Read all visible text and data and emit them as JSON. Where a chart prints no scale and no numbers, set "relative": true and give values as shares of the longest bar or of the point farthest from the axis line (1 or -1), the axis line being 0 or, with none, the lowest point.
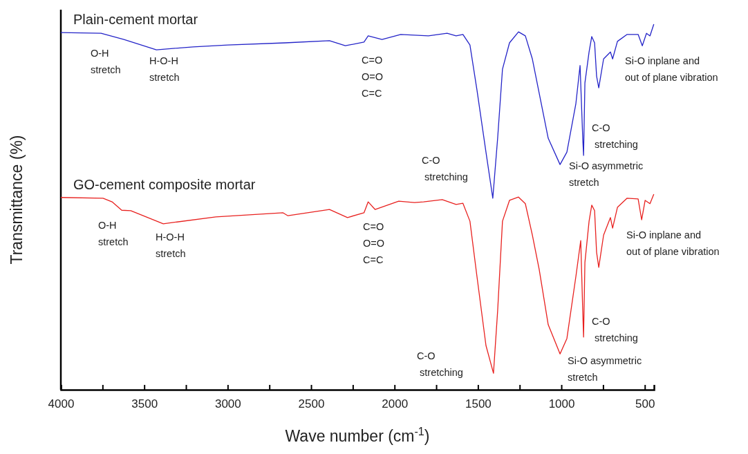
{
  "chart_data": {
    "type": "line",
    "relative": true,
    "xlabel": "Wave number (cm$^{-1}$)",
    "ylabel": "Transmittance (%)",
    "xlim": [
      4000,
      445
    ],
    "xticks": [
      4000,
      {
        "value": 3750,
        "label": null
      },
      3500,
      {
        "value": 3250,
        "label": null
      },
      3000,
      {
        "value": 2750,
        "label": null
      },
      2500,
      {
        "value": 2250,
        "label": null
      },
      2000,
      {
        "value": 1750,
        "label": null
      },
      1500,
      {
        "value": 1250,
        "label": null
      },
      1000,
      {
        "value": 750,
        "label": null
      },
      500
    ],
    "grid": false,
    "marker": "none",
    "line_style": "solid",
    "series": [
      {
        "name": "Plain-cement mortar",
        "color": "#2323c8",
        "x": [
          4000,
          3759,
          3622,
          3427,
          3207,
          3000,
          2656,
          2390,
          2295,
          2183,
          2158,
          2075,
          1963,
          1797,
          1685,
          1631,
          1590,
          1548,
          1506,
          1452,
          1411,
          1382,
          1353,
          1311,
          1257,
          1216,
          1174,
          1133,
          1079,
          1008,
          967,
          913,
          888,
          872,
          867,
          859,
          834,
          818,
          801,
          789,
          776,
          747,
          706,
          693,
          664,
          606,
          540,
          515,
          490,
          469,
          446
        ],
        "values": [
          0.977,
          0.975,
          0.958,
          0.93,
          0.938,
          0.943,
          0.949,
          0.955,
          0.941,
          0.951,
          0.968,
          0.958,
          0.972,
          0.968,
          0.975,
          0.968,
          0.972,
          0.943,
          0.82,
          0.65,
          0.524,
          0.688,
          0.877,
          0.949,
          0.979,
          0.968,
          0.905,
          0.811,
          0.688,
          0.616,
          0.65,
          0.783,
          0.887,
          0.688,
          0.641,
          0.839,
          0.924,
          0.966,
          0.949,
          0.858,
          0.826,
          0.905,
          0.924,
          0.905,
          0.953,
          0.972,
          0.972,
          0.941,
          0.975,
          0.968,
          1
        ]
      },
      {
        "name": "GO-cement composite mortar",
        "color": "#e8201e",
        "x": [
          4000,
          3747,
          3693,
          3635,
          3581,
          3386,
          3071,
          2668,
          2639,
          2390,
          2282,
          2183,
          2158,
          2116,
          1975,
          1880,
          1826,
          1714,
          1631,
          1590,
          1548,
          1506,
          1452,
          1407,
          1382,
          1353,
          1311,
          1257,
          1216,
          1174,
          1133,
          1079,
          1008,
          967,
          913,
          884,
          872,
          867,
          859,
          834,
          818,
          801,
          789,
          776,
          747,
          706,
          693,
          664,
          606,
          540,
          519,
          498,
          469,
          446
        ],
        "values": [
          0.526,
          0.524,
          0.514,
          0.491,
          0.49,
          0.454,
          0.473,
          0.484,
          0.476,
          0.493,
          0.471,
          0.484,
          0.514,
          0.493,
          0.516,
          0.512,
          0.514,
          0.52,
          0.507,
          0.51,
          0.461,
          0.31,
          0.121,
          0.045,
          0.216,
          0.461,
          0.518,
          0.527,
          0.509,
          0.423,
          0.329,
          0.178,
          0.098,
          0.14,
          0.31,
          0.408,
          0.216,
          0.144,
          0.348,
          0.461,
          0.505,
          0.49,
          0.376,
          0.335,
          0.423,
          0.471,
          0.442,
          0.499,
          0.524,
          0.522,
          0.465,
          0.518,
          0.509,
          0.535
        ]
      }
    ],
    "annotations": [
      "O-H\nstretch",
      "H-O-H\nstretch",
      "C=O\nO=O\nC=C",
      "C-O\n stretching",
      "Si-O asymmetric\nstretch",
      "C-O\n stretching",
      "Si-O inplane and\nout of plane vibration",
      "O-H\nstretch",
      "H-O-H\nstretch",
      "C=O\nO=O\nC=C",
      "C-O\n stretching",
      "Si-O asymmetric\nstretch",
      "C-O\n stretching",
      "Si-O inplane and\nout of plane vibration"
    ]
  }
}
